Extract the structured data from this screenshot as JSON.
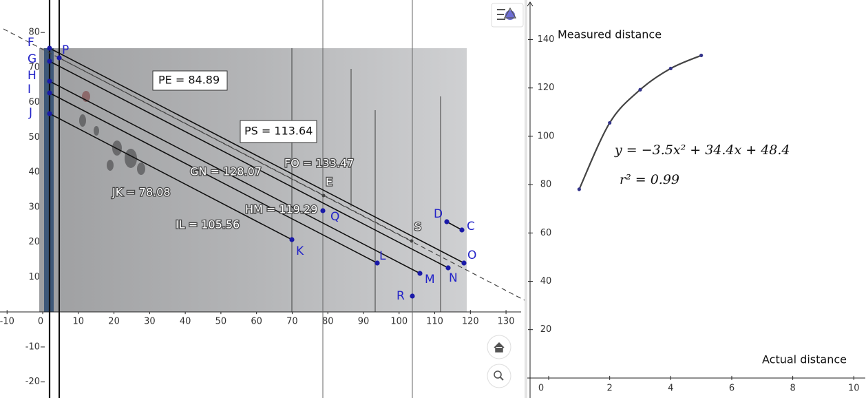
{
  "left_view": {
    "xlim": [
      -11.98,
      135.2
    ],
    "ylim": [
      -24.6,
      89.3
    ],
    "xticks": [
      -10,
      0,
      10,
      20,
      30,
      40,
      50,
      60,
      70,
      80,
      90,
      100,
      110,
      120,
      130
    ],
    "yticks": [
      -20,
      -10,
      10,
      20,
      30,
      40,
      50,
      60,
      70,
      80
    ],
    "points": [
      "F",
      "P",
      "G",
      "H",
      "I",
      "J",
      "E",
      "Q",
      "K",
      "L",
      "M",
      "N",
      "O",
      "S",
      "C",
      "D",
      "R"
    ],
    "measurements": [
      "PE = 84.89",
      "PS = 113.64",
      "FO = 133.47",
      "GN = 128.07",
      "HM = 119.29",
      "JK = 78.08",
      "IL = 105.56"
    ]
  },
  "right_view": {
    "xlim": [
      -0.7,
      10.4
    ],
    "ylim": [
      -8.3,
      156.4
    ],
    "xticks": [
      0,
      2,
      4,
      6,
      8,
      10
    ],
    "yticks": [
      20,
      40,
      60,
      80,
      100,
      120,
      140
    ],
    "y_axis_label": "Measured distance",
    "x_axis_label": "Actual distance",
    "x": [
      1,
      2,
      3,
      4,
      5
    ],
    "values": [
      78.08,
      105.56,
      119.29,
      128.07,
      133.47
    ],
    "equation": "y = −3.5x² + 34.4x + 48.4",
    "r_squared": "r² = 0.99"
  }
}
